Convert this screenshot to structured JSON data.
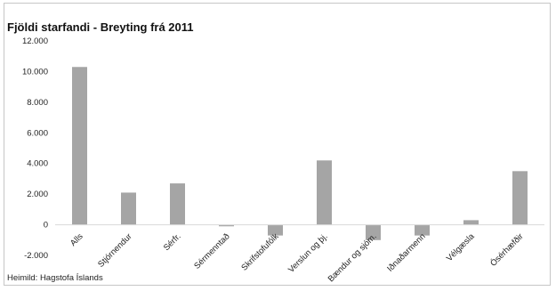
{
  "chart_data": {
    "type": "bar",
    "title": "Fjöldi starfandi - Breyting frá 2011",
    "source": "Heimild: Hagstofa Íslands",
    "categories": [
      "Alls",
      "Stjórnendur",
      "Sérfr.",
      "Sérmenntað",
      "Skrifstofufólk",
      "Verslun og þj.",
      "Bændur og sjóm.",
      "Iðnaðarmenn",
      "Vélgæsla",
      "Ósérhæfðir"
    ],
    "values": [
      10300,
      2100,
      2700,
      -100,
      -700,
      4200,
      -1000,
      -700,
      300,
      3500
    ],
    "ylim": [
      -2000,
      12000
    ],
    "yticks": [
      12000,
      10000,
      8000,
      6000,
      4000,
      2000,
      0,
      -2000
    ],
    "ytick_labels": [
      "12.000",
      "10.000",
      "8.000",
      "6.000",
      "4.000",
      "2.000",
      "0",
      "-2.000"
    ],
    "grid": false,
    "bar_color": "#a5a5a5",
    "axis_color": "#d9d9d9"
  }
}
